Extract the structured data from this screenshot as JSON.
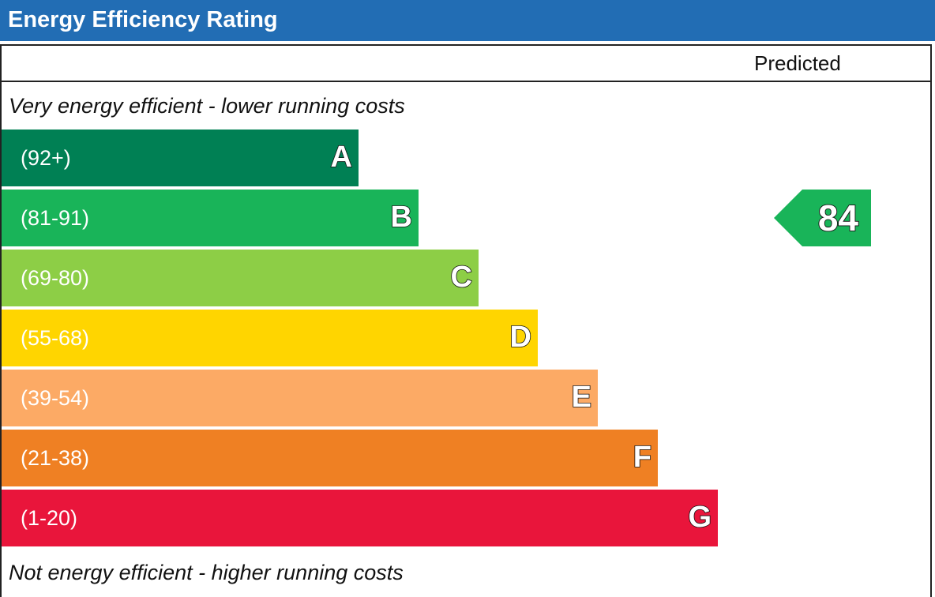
{
  "header": {
    "title": "Energy Efficiency Rating"
  },
  "columns": {
    "predicted_label": "Predicted"
  },
  "notes": {
    "top": "Very energy efficient - lower running costs",
    "bottom": "Not energy efficient - higher running costs"
  },
  "chart_data": {
    "type": "bar",
    "title": "Energy Efficiency Rating",
    "categories": [
      "A",
      "B",
      "C",
      "D",
      "E",
      "F",
      "G"
    ],
    "bands": [
      {
        "letter": "A",
        "range": "(92+)",
        "min": 92,
        "max": 100,
        "color": "#008054"
      },
      {
        "letter": "B",
        "range": "(81-91)",
        "min": 81,
        "max": 91,
        "color": "#19b459"
      },
      {
        "letter": "C",
        "range": "(69-80)",
        "min": 69,
        "max": 80,
        "color": "#8dce46"
      },
      {
        "letter": "D",
        "range": "(55-68)",
        "min": 55,
        "max": 68,
        "color": "#ffd500"
      },
      {
        "letter": "E",
        "range": "(39-54)",
        "min": 39,
        "max": 54,
        "color": "#fcaa65"
      },
      {
        "letter": "F",
        "range": "(21-38)",
        "min": 21,
        "max": 38,
        "color": "#ef8023"
      },
      {
        "letter": "G",
        "range": "(1-20)",
        "min": 1,
        "max": 20,
        "color": "#e9153b"
      }
    ],
    "series": [
      {
        "name": "Predicted",
        "value": 84,
        "band": "B",
        "color": "#19b459"
      }
    ]
  },
  "colors": {
    "header_bg": "#226db4",
    "border": "#222222",
    "text": "#111111"
  }
}
